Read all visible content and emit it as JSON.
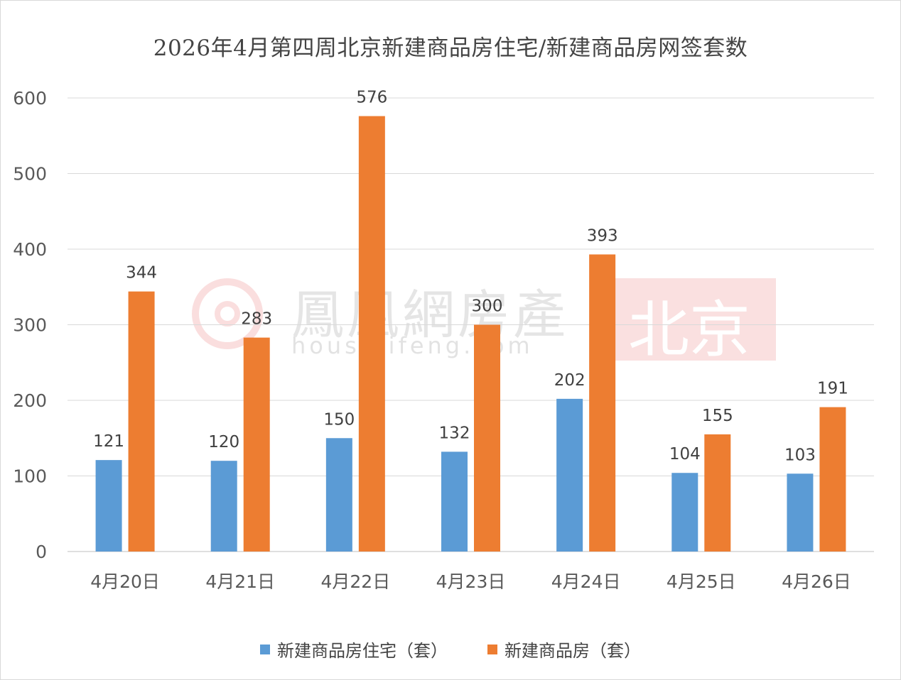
{
  "chart_data": {
    "type": "bar",
    "title": "2026年4月第四周北京新建商品房住宅/新建商品房网签套数",
    "categories": [
      "4月20日",
      "4月21日",
      "4月22日",
      "4月23日",
      "4月24日",
      "4月25日",
      "4月26日"
    ],
    "series": [
      {
        "name": "新建商品房住宅（套）",
        "values": [
          121,
          120,
          150,
          132,
          202,
          104,
          103
        ],
        "color": "#5b9bd5"
      },
      {
        "name": "新建商品房（套）",
        "values": [
          344,
          283,
          576,
          300,
          393,
          155,
          191
        ],
        "color": "#ed7d31"
      }
    ],
    "ylim": [
      0,
      600
    ],
    "yticks": [
      0,
      100,
      200,
      300,
      400,
      500,
      600
    ],
    "xlabel": "",
    "ylabel": "",
    "grid": true,
    "legend_position": "bottom",
    "data_labels": true
  },
  "watermark": {
    "brand": "鳳凰網房產",
    "url": "house.ifeng.com",
    "city": "北京",
    "logo_color": "#f19a9a"
  }
}
